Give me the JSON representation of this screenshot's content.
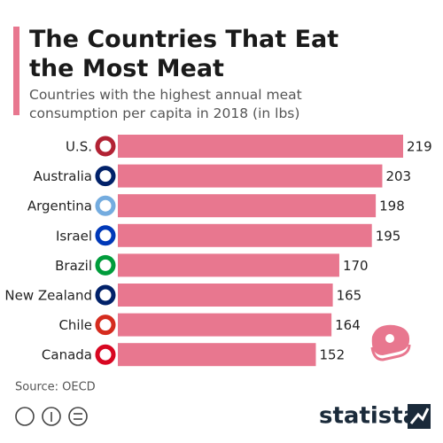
{
  "chart_data": {
    "type": "bar",
    "orientation": "horizontal",
    "title": "The Countries That Eat the Most Meat",
    "subtitle": "Countries with the highest annual meat consumption per capita in 2018 (in lbs)",
    "categories": [
      "U.S.",
      "Australia",
      "Argentina",
      "Israel",
      "Brazil",
      "New Zealand",
      "Chile",
      "Canada"
    ],
    "values": [
      219,
      203,
      198,
      195,
      170,
      165,
      164,
      152
    ],
    "color": "#e8778f",
    "source": "Source: OECD",
    "brand": "statista"
  }
}
